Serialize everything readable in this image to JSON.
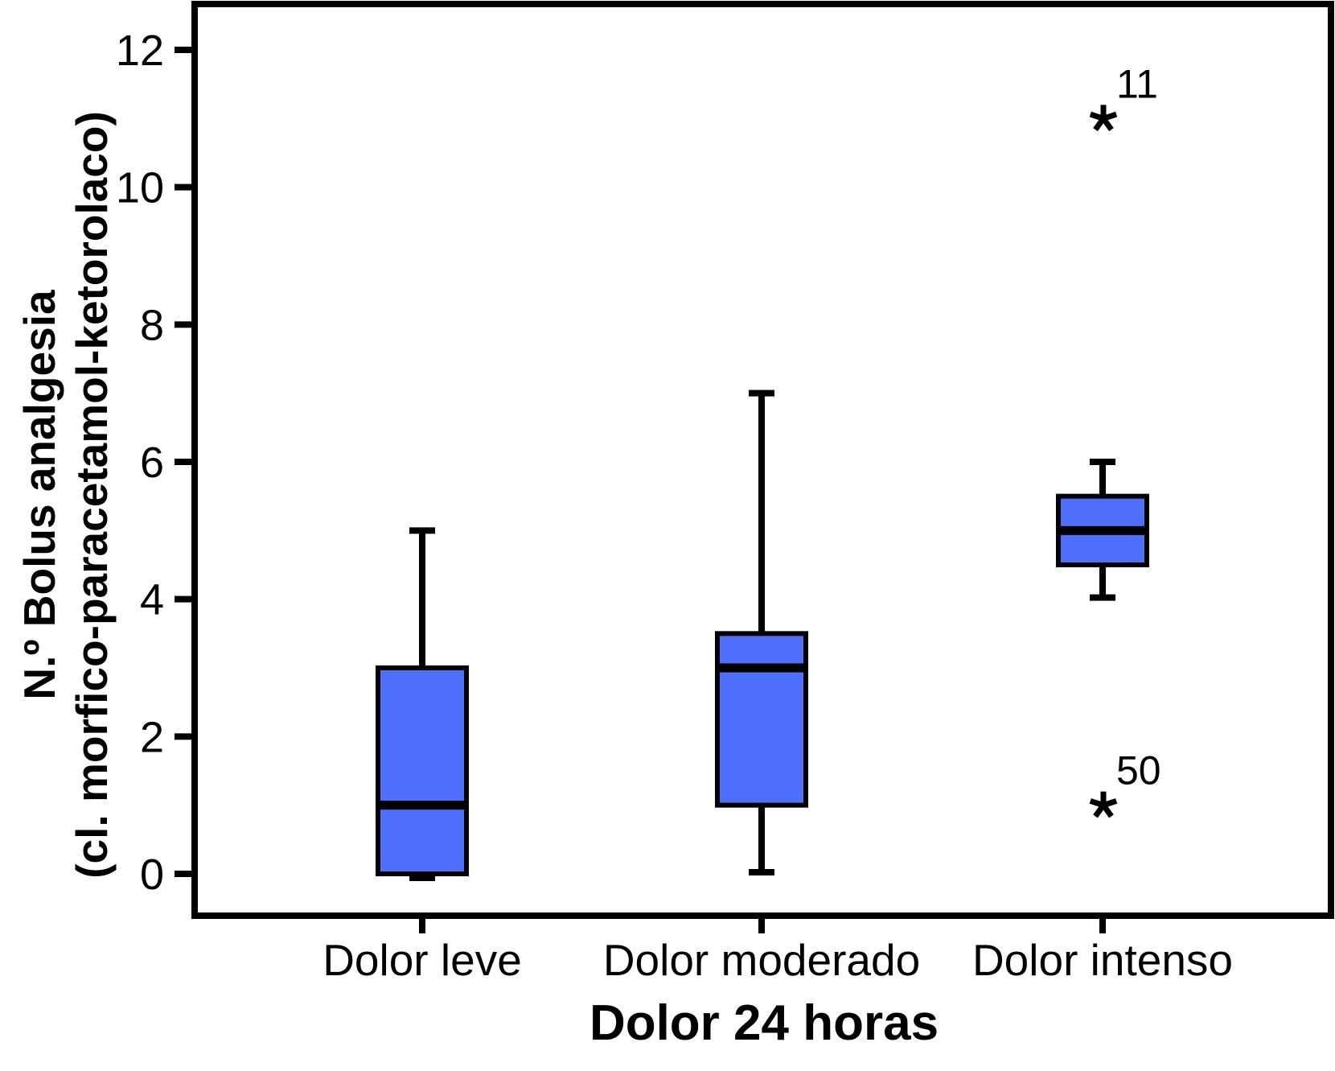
{
  "chart_data": {
    "type": "box",
    "title": "",
    "xlabel": "Dolor 24 horas",
    "ylabel_lines": [
      "N.º Bolus analgesia",
      "(cl. morfico-paracetamol-ketorolaco)"
    ],
    "categories": [
      "Dolor leve",
      "Dolor moderado",
      "Dolor intenso"
    ],
    "yticks": [
      0,
      2,
      4,
      6,
      8,
      10,
      12
    ],
    "ylim": [
      -0.6,
      12.7
    ],
    "grid": "off",
    "legend": "none",
    "outlier_marker": "asterisk",
    "boxes": [
      {
        "category": "Dolor leve",
        "whisker_low": 0,
        "q1": 0,
        "median": 1,
        "q3": 3,
        "whisker_high": 5,
        "outliers": []
      },
      {
        "category": "Dolor moderado",
        "whisker_low": 0,
        "q1": 1,
        "median": 3,
        "q3": 3.5,
        "whisker_high": 7,
        "outliers": []
      },
      {
        "category": "Dolor intenso",
        "whisker_low": 4,
        "q1": 4.5,
        "median": 5,
        "q3": 5.5,
        "whisker_high": 6,
        "outliers": [
          {
            "value": 11,
            "case_label": "11"
          },
          {
            "value": 1,
            "case_label": "50"
          }
        ]
      }
    ],
    "colors": {
      "box_fill": "#4d6ffc",
      "line": "#000000",
      "background": "#ffffff"
    }
  }
}
